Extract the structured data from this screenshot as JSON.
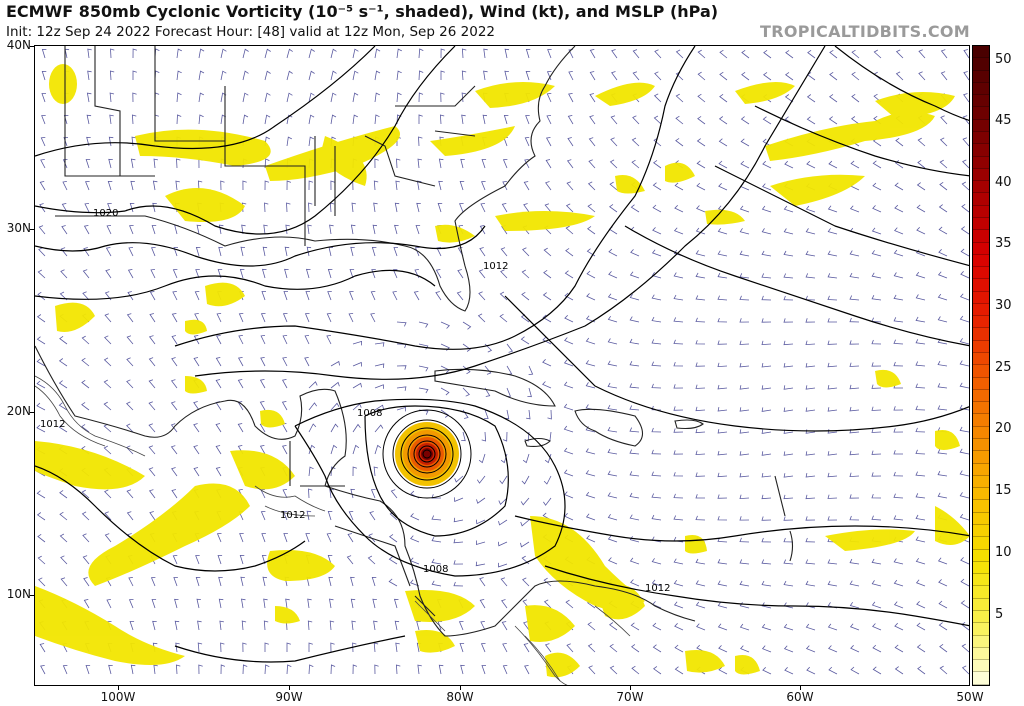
{
  "header": {
    "title": "ECMWF 850mb Cyclonic Vorticity (10⁻⁵ s⁻¹, shaded), Wind (kt), and MSLP (hPa)",
    "subtitle": "Init: 12z Sep 24 2022   Forecast Hour: [48]   valid at 12z Mon, Sep 26 2022",
    "brand": "TROPICALTIDBITS.COM"
  },
  "axes": {
    "lat_labels": [
      "40N",
      "30N",
      "20N",
      "10N"
    ],
    "lon_labels": [
      "100W",
      "90W",
      "80W",
      "70W",
      "60W",
      "50W"
    ]
  },
  "colorbar": {
    "labels": [
      "50",
      "45",
      "40",
      "35",
      "30",
      "25",
      "20",
      "15",
      "10",
      "5"
    ],
    "range": [
      0,
      52
    ]
  },
  "contour_labels": [
    "1020",
    "1012",
    "1012",
    "1008",
    "1012",
    "1008",
    "1012"
  ],
  "colors": {
    "shading_yellow": "#f2e600",
    "shading_light": "#f7f08a",
    "contour": "#000000",
    "wind_barb": "#5a5aa0",
    "coastline": "#222222",
    "brand_gray": "#9a9a9a"
  },
  "icons": {
    "storm_center": "hurricane-vortex-icon"
  }
}
